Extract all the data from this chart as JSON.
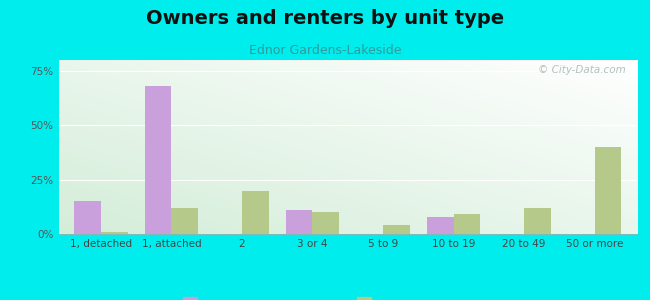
{
  "title": "Owners and renters by unit type",
  "subtitle": "Ednor Gardens-Lakeside",
  "categories": [
    "1, detached",
    "1, attached",
    "2",
    "3 or 4",
    "5 to 9",
    "10 to 19",
    "20 to 49",
    "50 or more"
  ],
  "owner_values": [
    15.0,
    68.0,
    0.0,
    11.0,
    0.0,
    8.0,
    0.0,
    0.0
  ],
  "renter_values": [
    1.0,
    12.0,
    20.0,
    10.0,
    4.0,
    9.0,
    12.0,
    40.0
  ],
  "owner_color": "#c9a0dc",
  "renter_color": "#b5c98a",
  "background_outer": "#00eded",
  "yticks": [
    0,
    25,
    50,
    75
  ],
  "ytick_labels": [
    "0%",
    "25%",
    "50%",
    "75%"
  ],
  "ylim": [
    0,
    80
  ],
  "bar_width": 0.38,
  "title_fontsize": 14,
  "subtitle_fontsize": 9,
  "legend_fontsize": 9,
  "tick_fontsize": 7.5,
  "watermark_text": "© City-Data.com",
  "watermark_color": "#aabbbb"
}
